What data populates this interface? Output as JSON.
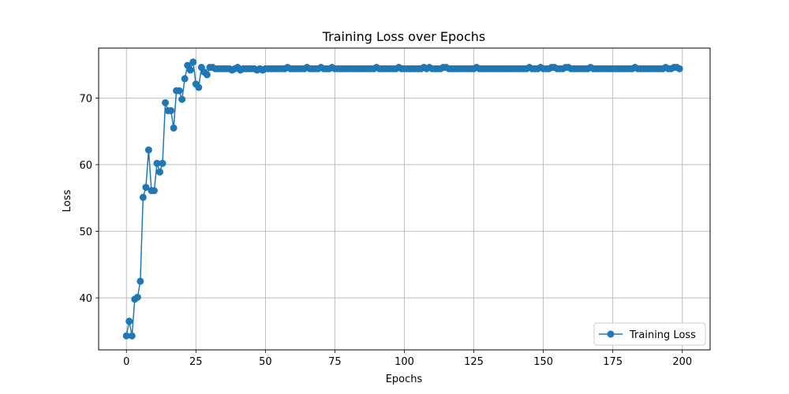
{
  "chart_data": {
    "type": "line",
    "title": "Training Loss over Epochs",
    "xlabel": "Epochs",
    "ylabel": "Loss",
    "xlim": [
      -10,
      210
    ],
    "ylim": [
      32.2,
      77.5
    ],
    "xticks": [
      0,
      25,
      50,
      75,
      100,
      125,
      150,
      175,
      200
    ],
    "yticks": [
      40,
      50,
      60,
      70
    ],
    "grid": true,
    "legend_position": "bottom-right",
    "marker": "circle",
    "series": [
      {
        "name": "Training Loss",
        "color": "#1f77b4",
        "x_start": 0,
        "x_step": 1,
        "values": [
          34.3,
          36.5,
          34.3,
          39.8,
          40.1,
          42.5,
          55.1,
          56.6,
          62.2,
          56.1,
          56.1,
          60.2,
          58.9,
          60.2,
          69.3,
          68.1,
          68.1,
          65.5,
          71.1,
          71.1,
          69.8,
          72.9,
          74.9,
          74.2,
          75.4,
          72.1,
          71.6,
          74.6,
          73.9,
          73.5,
          74.6,
          74.6,
          74.4,
          74.4,
          74.4,
          74.4,
          74.4,
          74.4,
          74.2,
          74.4,
          74.6,
          74.2,
          74.4,
          74.4,
          74.4,
          74.4,
          74.4,
          74.2,
          74.4,
          74.2,
          74.4,
          74.4,
          74.4,
          74.4,
          74.4,
          74.4,
          74.4,
          74.4,
          74.6,
          74.4,
          74.4,
          74.4,
          74.4,
          74.4,
          74.4,
          74.6,
          74.4,
          74.4,
          74.4,
          74.4,
          74.6,
          74.4,
          74.4,
          74.4,
          74.6,
          74.4,
          74.4,
          74.4,
          74.4,
          74.4,
          74.4,
          74.4,
          74.4,
          74.4,
          74.4,
          74.4,
          74.4,
          74.4,
          74.4,
          74.4,
          74.6,
          74.4,
          74.4,
          74.4,
          74.4,
          74.4,
          74.4,
          74.4,
          74.6,
          74.4,
          74.4,
          74.4,
          74.4,
          74.4,
          74.4,
          74.4,
          74.4,
          74.6,
          74.4,
          74.6,
          74.4,
          74.4,
          74.4,
          74.4,
          74.6,
          74.6,
          74.4,
          74.4,
          74.4,
          74.4,
          74.4,
          74.4,
          74.4,
          74.4,
          74.4,
          74.4,
          74.6,
          74.4,
          74.4,
          74.4,
          74.4,
          74.4,
          74.4,
          74.4,
          74.4,
          74.4,
          74.4,
          74.4,
          74.4,
          74.4,
          74.4,
          74.4,
          74.4,
          74.4,
          74.4,
          74.6,
          74.4,
          74.4,
          74.4,
          74.6,
          74.4,
          74.4,
          74.4,
          74.6,
          74.6,
          74.4,
          74.4,
          74.4,
          74.6,
          74.6,
          74.4,
          74.4,
          74.4,
          74.4,
          74.4,
          74.4,
          74.4,
          74.6,
          74.4,
          74.4,
          74.4,
          74.4,
          74.4,
          74.4,
          74.4,
          74.4,
          74.4,
          74.4,
          74.4,
          74.4,
          74.4,
          74.4,
          74.4,
          74.6,
          74.4,
          74.4,
          74.4,
          74.4,
          74.4,
          74.4,
          74.4,
          74.4,
          74.4,
          74.4,
          74.6,
          74.4,
          74.4,
          74.6,
          74.6,
          74.4
        ]
      }
    ]
  }
}
